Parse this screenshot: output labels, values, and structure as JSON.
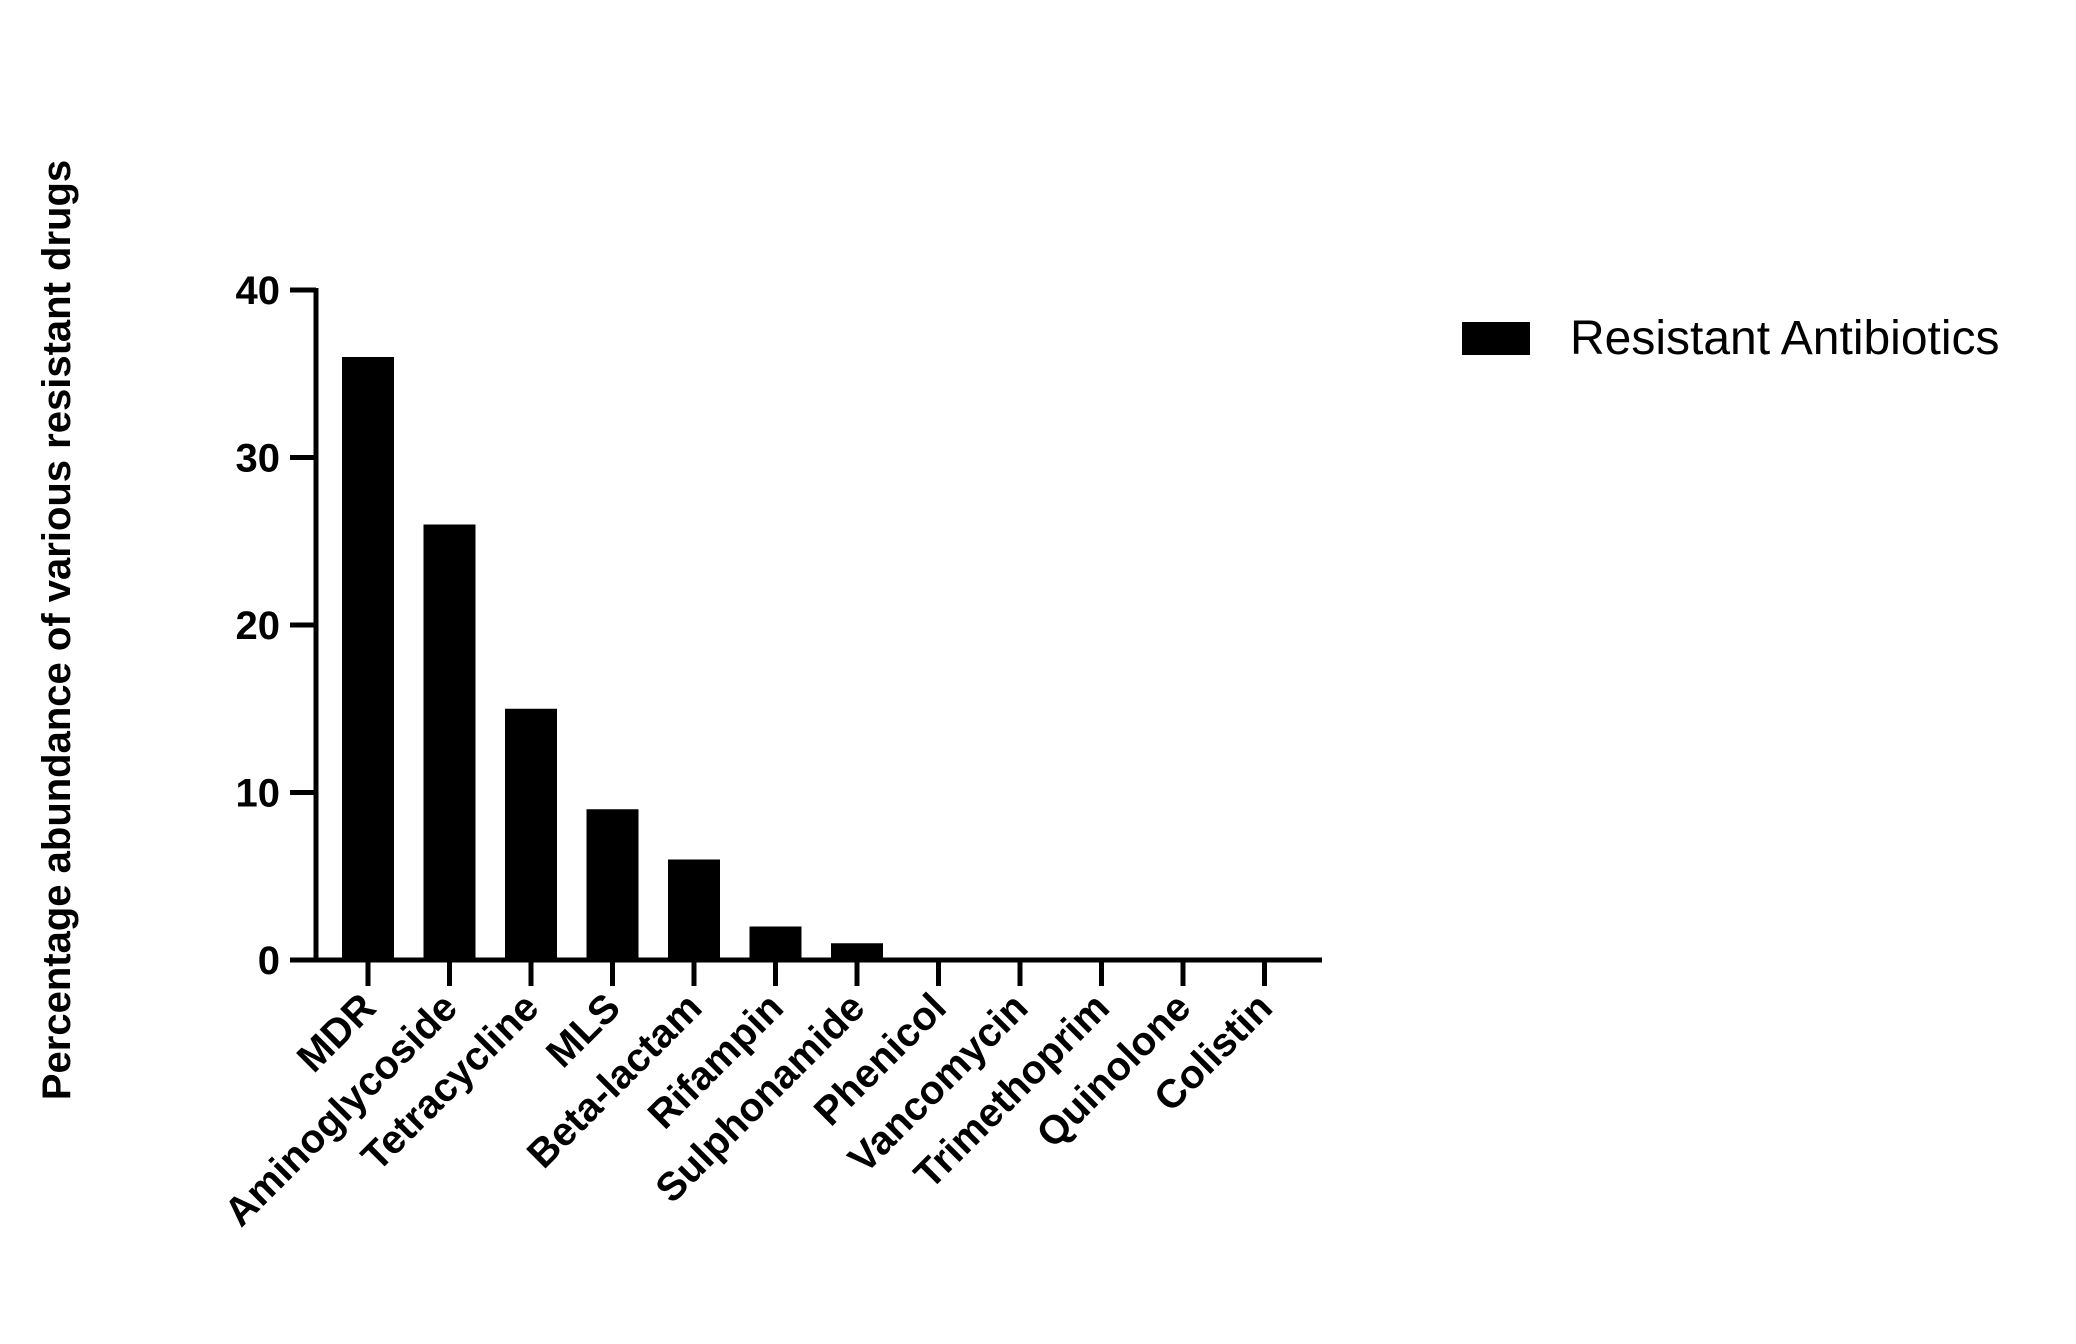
{
  "chart_data": {
    "type": "bar",
    "title": "",
    "xlabel": "",
    "ylabel": "Percentage abundance of various resistant drugs",
    "categories": [
      "MDR",
      "Aminoglycoside",
      "Tetracycline",
      "MLS",
      "Beta-lactam",
      "Rifampin",
      "Sulphonamide",
      "Phenicol",
      "Vancomycin",
      "Trimethoprim",
      "Quinolone",
      "Colistin"
    ],
    "series": [
      {
        "name": "Resistant Antibiotics",
        "values": [
          36,
          26,
          15,
          9,
          6,
          2,
          1,
          0,
          0,
          0,
          0,
          0
        ],
        "color": "#000000"
      }
    ],
    "ylim": [
      0,
      40
    ],
    "yticks": [
      0,
      10,
      20,
      30,
      40
    ],
    "grid": false,
    "legend_position": "top-right"
  }
}
